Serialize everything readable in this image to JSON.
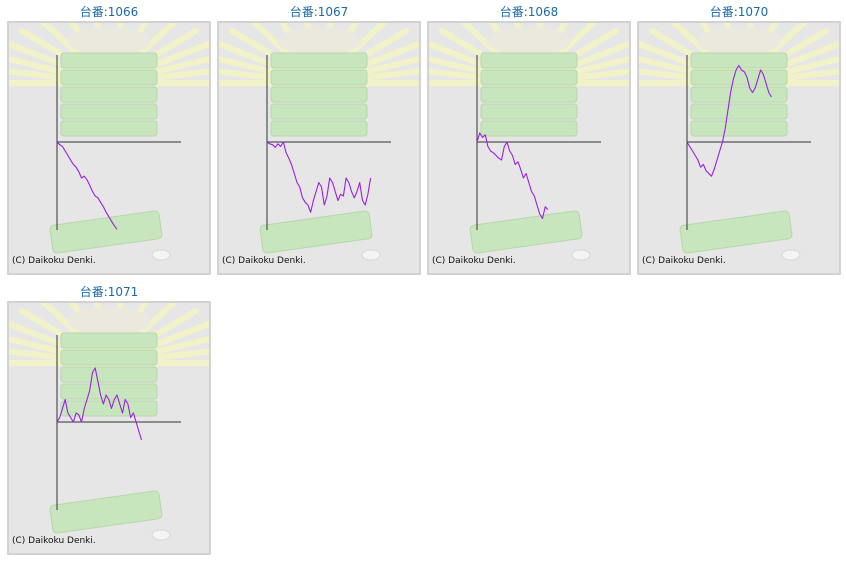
{
  "page": {
    "copyright": "(C) Daikoku Denki."
  },
  "colors": {
    "line": "#9b1ee6",
    "axis": "#333333",
    "title": "#1e6aa8",
    "panel": "#e6e6e6",
    "rays": "#f2f2c8",
    "machine": "#c8e6be"
  },
  "chart_data": [
    {
      "type": "line",
      "title": "台番:1066",
      "ylim": [
        -100,
        100
      ],
      "series": [
        {
          "values": [
            0,
            -3,
            -5,
            -10,
            -15,
            -20,
            -25,
            -28,
            -33,
            -40,
            -38,
            -42,
            -48,
            -55,
            -60,
            -62,
            -67,
            -72,
            -78,
            -83,
            -88,
            -93,
            -97
          ]
        }
      ]
    },
    {
      "type": "line",
      "title": "台番:1067",
      "ylim": [
        -100,
        100
      ],
      "series": [
        {
          "values": [
            0,
            -2,
            -3,
            -6,
            -2,
            -5,
            0,
            -12,
            -18,
            -25,
            -35,
            -45,
            -50,
            -62,
            -67,
            -70,
            -78,
            -65,
            -55,
            -45,
            -50,
            -70,
            -60,
            -40,
            -45,
            -55,
            -65,
            -58,
            -60,
            -40,
            -45,
            -55,
            -62,
            -55,
            -45,
            -65,
            -70,
            -58,
            -40
          ]
        }
      ]
    },
    {
      "type": "line",
      "title": "台番:1068",
      "ylim": [
        -100,
        100
      ],
      "series": [
        {
          "values": [
            0,
            10,
            5,
            8,
            -5,
            -10,
            -12,
            -15,
            -18,
            -20,
            -5,
            0,
            -10,
            -15,
            -25,
            -22,
            -30,
            -40,
            -35,
            -45,
            -55,
            -60,
            -70,
            -80,
            -85,
            -72,
            -75
          ]
        }
      ]
    },
    {
      "type": "line",
      "title": "台番:1070",
      "ylim": [
        -100,
        100
      ],
      "series": [
        {
          "values": [
            0,
            -5,
            -10,
            -15,
            -20,
            -28,
            -25,
            -32,
            -35,
            -38,
            -30,
            -20,
            -10,
            0,
            15,
            35,
            55,
            70,
            80,
            85,
            80,
            78,
            72,
            60,
            55,
            60,
            70,
            80,
            75,
            65,
            55,
            50
          ]
        }
      ]
    },
    {
      "type": "line",
      "title": "台番:1071",
      "ylim": [
        -100,
        100
      ],
      "series": [
        {
          "values": [
            0,
            5,
            15,
            25,
            10,
            5,
            0,
            10,
            8,
            0,
            15,
            25,
            35,
            55,
            60,
            45,
            30,
            20,
            30,
            25,
            15,
            25,
            30,
            20,
            10,
            25,
            20,
            5,
            10,
            0,
            -10,
            -20
          ]
        }
      ]
    }
  ]
}
